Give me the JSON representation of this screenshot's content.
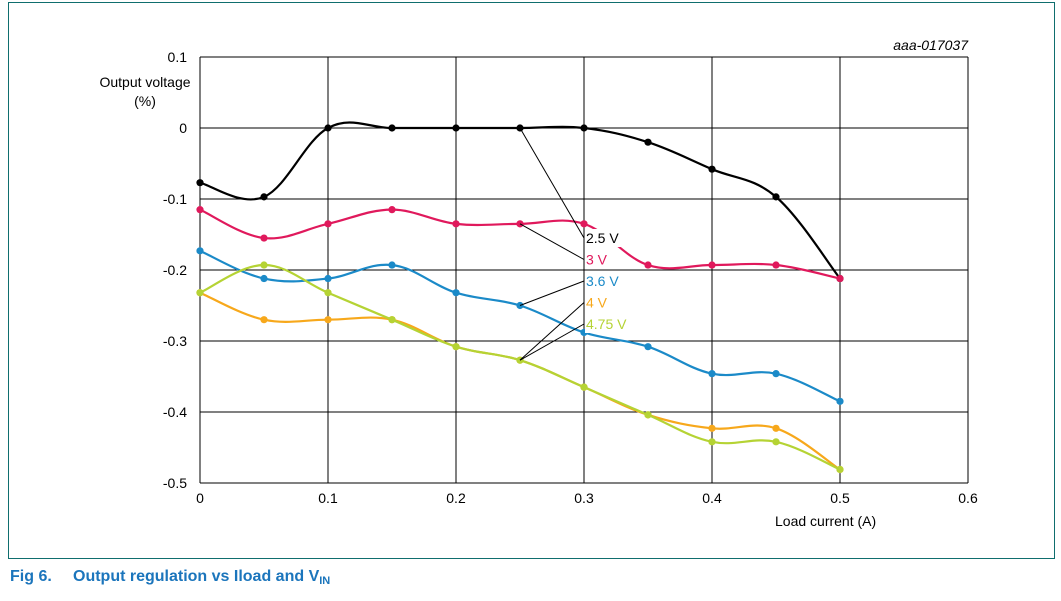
{
  "figure": {
    "code": "aaa-017037",
    "caption_number": "Fig 6.",
    "caption_text": "Output regulation vs Iload and V",
    "caption_sub": "IN"
  },
  "chart_data": {
    "type": "line",
    "title": "",
    "xlabel": "Load current (A)",
    "ylabel_line1": "Output voltage",
    "ylabel_line2": "(%)",
    "xlim": [
      0,
      0.6
    ],
    "ylim": [
      -0.5,
      0.1
    ],
    "xticks": [
      0,
      0.1,
      0.2,
      0.3,
      0.4,
      0.5,
      0.6
    ],
    "yticks": [
      0.1,
      0,
      -0.1,
      -0.2,
      -0.3,
      -0.4,
      -0.5
    ],
    "grid": true,
    "x": [
      0,
      0.05,
      0.1,
      0.15,
      0.2,
      0.25,
      0.3,
      0.35,
      0.4,
      0.45,
      0.5
    ],
    "series": [
      {
        "name": "2.5 V",
        "color": "#000000",
        "values": [
          -0.077,
          -0.097,
          0.0,
          0.0,
          0.0,
          0.0,
          0.0,
          -0.02,
          -0.058,
          -0.097,
          -0.212
        ]
      },
      {
        "name": "3 V",
        "color": "#e0195c",
        "values": [
          -0.115,
          -0.155,
          -0.135,
          -0.115,
          -0.135,
          -0.135,
          -0.135,
          -0.193,
          -0.193,
          -0.193,
          -0.212
        ]
      },
      {
        "name": "3.6 V",
        "color": "#1b8ac8",
        "values": [
          -0.173,
          -0.212,
          -0.212,
          -0.193,
          -0.232,
          -0.25,
          -0.288,
          -0.308,
          -0.346,
          -0.346,
          -0.385
        ]
      },
      {
        "name": "4 V",
        "color": "#f7a81b",
        "values": [
          -0.232,
          -0.27,
          -0.27,
          -0.27,
          -0.308,
          -0.327,
          -0.365,
          -0.404,
          -0.423,
          -0.423,
          -0.481
        ]
      },
      {
        "name": "4.75 V",
        "color": "#b5d334",
        "values": [
          -0.232,
          -0.193,
          -0.232,
          -0.27,
          -0.308,
          -0.327,
          -0.365,
          -0.404,
          -0.442,
          -0.442,
          -0.481
        ]
      }
    ],
    "annotations": [
      {
        "series": "2.5 V",
        "points_x": [
          0.25
        ]
      },
      {
        "series": "3 V",
        "points_x": [
          0.25
        ]
      },
      {
        "series": "3.6 V",
        "points_x": [
          0.25
        ]
      },
      {
        "series": "4 V",
        "points_x": [
          0.25
        ]
      },
      {
        "series": "4.75 V",
        "points_x": [
          0.25
        ]
      }
    ]
  }
}
